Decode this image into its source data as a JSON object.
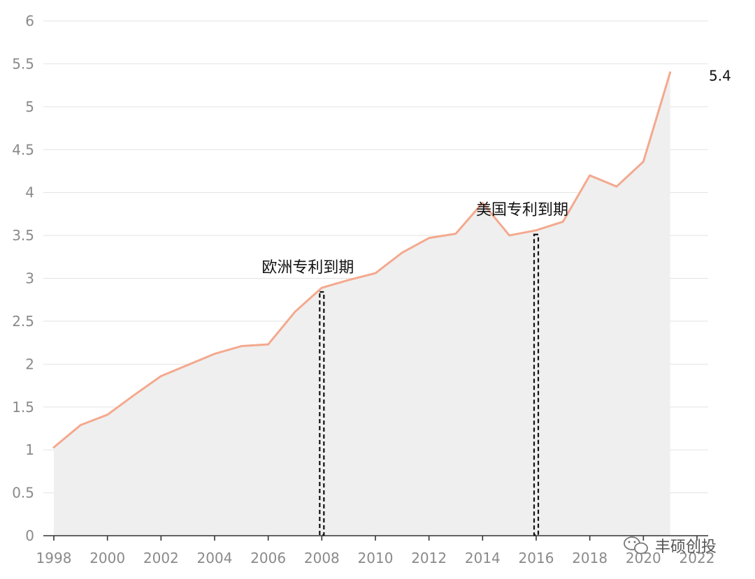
{
  "chart_data": {
    "type": "area",
    "x": [
      1998,
      1999,
      2000,
      2001,
      2002,
      2003,
      2004,
      2005,
      2006,
      2007,
      2008,
      2009,
      2010,
      2011,
      2012,
      2013,
      2014,
      2015,
      2016,
      2017,
      2018,
      2019,
      2020,
      2021
    ],
    "values": [
      1.03,
      1.29,
      1.41,
      1.64,
      1.86,
      1.99,
      2.12,
      2.21,
      2.23,
      2.61,
      2.89,
      2.98,
      3.06,
      3.3,
      3.47,
      3.52,
      3.88,
      3.5,
      3.56,
      3.66,
      4.2,
      4.07,
      4.36,
      5.4
    ],
    "xlim": [
      1998,
      2022
    ],
    "ylim": [
      0,
      6
    ],
    "x_ticks": [
      "1998",
      "2000",
      "2002",
      "2004",
      "2006",
      "2008",
      "2010",
      "2012",
      "2014",
      "2016",
      "2018",
      "2020",
      "2022"
    ],
    "y_ticks": [
      "0",
      "0.5",
      "1",
      "1.5",
      "2",
      "2.5",
      "3",
      "3.5",
      "4",
      "4.5",
      "5",
      "5.5",
      "6"
    ],
    "end_label": "5.4",
    "annotations": [
      {
        "text": "欧洲专利到期",
        "x": 2008
      },
      {
        "text": "美国专利到期",
        "x": 2016
      }
    ],
    "grid": true,
    "line_color": "#f4a98e",
    "fill_color": "#efefef"
  },
  "watermark": {
    "text": "丰硕创投",
    "icon": "wechat-icon"
  }
}
